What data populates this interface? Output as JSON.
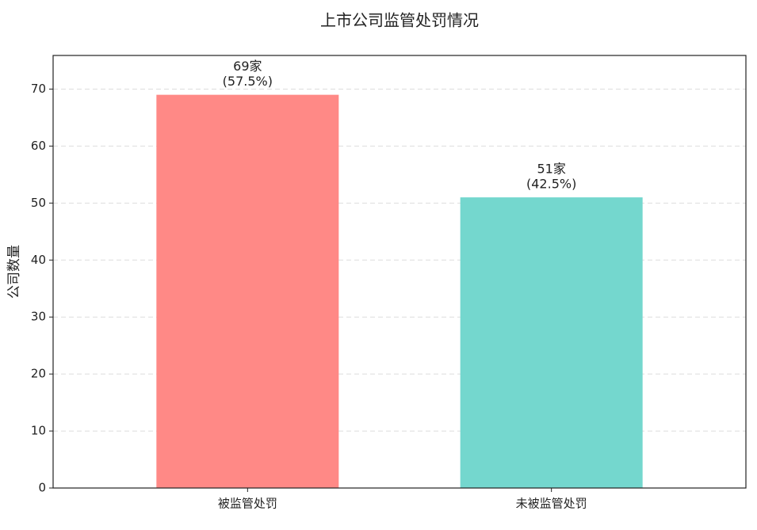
{
  "chart_data": {
    "type": "bar",
    "title": "上市公司监管处罚情况",
    "y_label": "公司数量",
    "categories": [
      "被监管处罚",
      "未被监管处罚"
    ],
    "values": [
      69,
      51
    ],
    "value_labels": [
      "69家",
      "51家"
    ],
    "percent_labels": [
      "(57.5%)",
      "(42.5%)"
    ],
    "colors": [
      "#ff8986",
      "#74d7ce"
    ],
    "ylim": [
      0,
      75.9
    ],
    "yticks": [
      0,
      10,
      20,
      30,
      40,
      50,
      60,
      70
    ],
    "grid": true
  }
}
